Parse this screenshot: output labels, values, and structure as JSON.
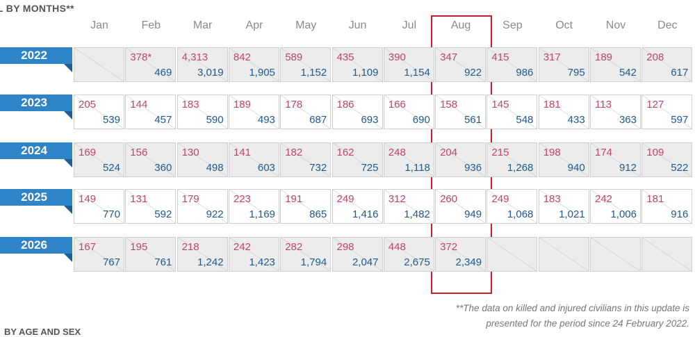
{
  "header": {
    "title": "L BY MONTHS**"
  },
  "table": {
    "months": [
      "Jan",
      "Feb",
      "Mar",
      "Apr",
      "May",
      "Jun",
      "Jul",
      "Aug",
      "Sep",
      "Oct",
      "Nov",
      "Dec"
    ],
    "rows": [
      {
        "year": "2022",
        "cells": [
          null,
          {
            "top": "378*",
            "bottom": "469"
          },
          {
            "top": "4,313",
            "bottom": "3,019"
          },
          {
            "top": "842",
            "bottom": "1,905"
          },
          {
            "top": "589",
            "bottom": "1,152"
          },
          {
            "top": "435",
            "bottom": "1,109"
          },
          {
            "top": "390",
            "bottom": "1,154"
          },
          {
            "top": "347",
            "bottom": "922"
          },
          {
            "top": "415",
            "bottom": "986"
          },
          {
            "top": "317",
            "bottom": "795"
          },
          {
            "top": "189",
            "bottom": "542"
          },
          {
            "top": "208",
            "bottom": "617"
          }
        ]
      },
      {
        "year": "2023",
        "cells": [
          {
            "top": "205",
            "bottom": "539"
          },
          {
            "top": "144",
            "bottom": "457"
          },
          {
            "top": "183",
            "bottom": "590"
          },
          {
            "top": "189",
            "bottom": "493"
          },
          {
            "top": "178",
            "bottom": "687"
          },
          {
            "top": "186",
            "bottom": "693"
          },
          {
            "top": "166",
            "bottom": "690"
          },
          {
            "top": "158",
            "bottom": "561"
          },
          {
            "top": "145",
            "bottom": "548"
          },
          {
            "top": "181",
            "bottom": "433"
          },
          {
            "top": "113",
            "bottom": "363"
          },
          {
            "top": "127",
            "bottom": "597"
          }
        ]
      },
      {
        "year": "2024",
        "cells": [
          {
            "top": "169",
            "bottom": "524"
          },
          {
            "top": "156",
            "bottom": "360"
          },
          {
            "top": "130",
            "bottom": "498"
          },
          {
            "top": "141",
            "bottom": "603"
          },
          {
            "top": "182",
            "bottom": "732"
          },
          {
            "top": "162",
            "bottom": "725"
          },
          {
            "top": "248",
            "bottom": "1,118"
          },
          {
            "top": "204",
            "bottom": "936"
          },
          {
            "top": "215",
            "bottom": "1,268"
          },
          {
            "top": "198",
            "bottom": "940"
          },
          {
            "top": "174",
            "bottom": "912"
          },
          {
            "top": "109",
            "bottom": "522"
          }
        ]
      },
      {
        "year": "2025",
        "cells": [
          {
            "top": "149",
            "bottom": "770"
          },
          {
            "top": "131",
            "bottom": "592"
          },
          {
            "top": "179",
            "bottom": "922"
          },
          {
            "top": "223",
            "bottom": "1,169"
          },
          {
            "top": "191",
            "bottom": "865"
          },
          {
            "top": "249",
            "bottom": "1,416"
          },
          {
            "top": "312",
            "bottom": "1,482"
          },
          {
            "top": "260",
            "bottom": "949"
          },
          {
            "top": "249",
            "bottom": "1,068"
          },
          {
            "top": "183",
            "bottom": "1,021"
          },
          {
            "top": "242",
            "bottom": "1,006"
          },
          {
            "top": "181",
            "bottom": "916"
          }
        ]
      },
      {
        "year": "2026",
        "cells": [
          {
            "top": "167",
            "bottom": "767"
          },
          {
            "top": "195",
            "bottom": "761"
          },
          {
            "top": "218",
            "bottom": "1,242"
          },
          {
            "top": "242",
            "bottom": "1,423"
          },
          {
            "top": "282",
            "bottom": "1,794"
          },
          {
            "top": "298",
            "bottom": "2,047"
          },
          {
            "top": "448",
            "bottom": "2,675"
          },
          {
            "top": "372",
            "bottom": "2,349"
          },
          null,
          null,
          null,
          null
        ]
      }
    ]
  },
  "footnote": {
    "lines": [
      "**The data on killed and injured civilians in this update is",
      "presented for the period since 24 February 2022."
    ]
  },
  "next_section": "BY AGE AND SEX"
}
